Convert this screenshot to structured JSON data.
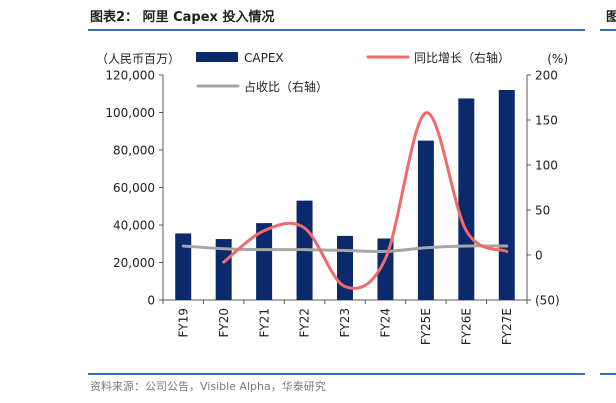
{
  "header": {
    "title": "图表2： 阿里 Capex 投入情况"
  },
  "edge": {
    "char": "图"
  },
  "source": {
    "text": "资料来源：公司公告，Visible Alpha，华泰研究"
  },
  "chart_data": {
    "type": "bar",
    "categories": [
      "FY19",
      "FY20",
      "FY21",
      "FY22",
      "FY23",
      "FY24",
      "FY25E",
      "FY26E",
      "FY27E"
    ],
    "series": [
      {
        "name": "CAPEX",
        "type": "bar",
        "axis": "left",
        "color": "#0b2a6b",
        "values": [
          35500,
          32500,
          41000,
          53000,
          34200,
          32800,
          85000,
          107500,
          112000
        ]
      },
      {
        "name": "同比增长（右轴）",
        "type": "line",
        "axis": "right",
        "color": "#f06a6a",
        "values": [
          null,
          -8,
          27,
          30,
          -35,
          -4,
          158,
          27,
          4
        ]
      },
      {
        "name": "占收比（右轴）",
        "type": "line",
        "axis": "right",
        "color": "#a6a6a6",
        "values": [
          10,
          7,
          6,
          6,
          5,
          4,
          8,
          10,
          10
        ]
      }
    ],
    "y_left": {
      "unit": "（人民币百万）",
      "min": 0,
      "max": 120000,
      "ticks": [
        0,
        20000,
        40000,
        60000,
        80000,
        100000,
        120000
      ],
      "tick_labels": [
        "0",
        "20,000",
        "40,000",
        "60,000",
        "80,000",
        "100,000",
        "120,000"
      ]
    },
    "y_right": {
      "unit": "(%)",
      "min": -50,
      "max": 200,
      "ticks": [
        -50,
        0,
        50,
        100,
        150,
        200
      ],
      "tick_labels": [
        "(50)",
        "0",
        "50",
        "100",
        "150",
        "200"
      ]
    },
    "grid": false,
    "legend_position": "top"
  }
}
